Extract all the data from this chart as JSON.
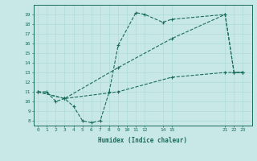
{
  "xlabel": "Humidex (Indice chaleur)",
  "bg_color": "#c8e8e8",
  "line_color": "#1a6b5a",
  "series": [
    {
      "x": [
        0,
        1,
        2,
        3,
        4,
        5,
        6,
        7,
        8,
        9,
        11,
        12,
        14,
        15,
        21,
        22,
        23
      ],
      "y": [
        11,
        11,
        10,
        10.3,
        9.5,
        8,
        7.8,
        8,
        11,
        15.8,
        19.2,
        19,
        18.2,
        18.5,
        19,
        13,
        13
      ]
    },
    {
      "x": [
        0,
        3,
        9,
        15,
        21,
        22,
        23
      ],
      "y": [
        11,
        10.3,
        13.5,
        16.5,
        19,
        13,
        13
      ]
    },
    {
      "x": [
        0,
        3,
        9,
        15,
        21,
        22,
        23
      ],
      "y": [
        11,
        10.3,
        11,
        12.5,
        13,
        13,
        13
      ]
    }
  ],
  "xticks": [
    0,
    1,
    2,
    3,
    4,
    5,
    6,
    7,
    8,
    9,
    10,
    11,
    12,
    14,
    15,
    21,
    22,
    23
  ],
  "xtick_labels": [
    "0",
    "1",
    "2",
    "3",
    "4",
    "5",
    "6",
    "7",
    "8",
    "9",
    "10",
    "11",
    "12",
    "14",
    "15",
    "21",
    "22",
    "23"
  ],
  "yticks": [
    8,
    9,
    10,
    11,
    12,
    13,
    14,
    15,
    16,
    17,
    18,
    19
  ],
  "ytick_labels": [
    "8",
    "9",
    "10",
    "11",
    "12",
    "13",
    "14",
    "15",
    "16",
    "17",
    "18",
    "19"
  ],
  "xlim": [
    -0.5,
    24.0
  ],
  "ylim": [
    7.5,
    20.0
  ]
}
